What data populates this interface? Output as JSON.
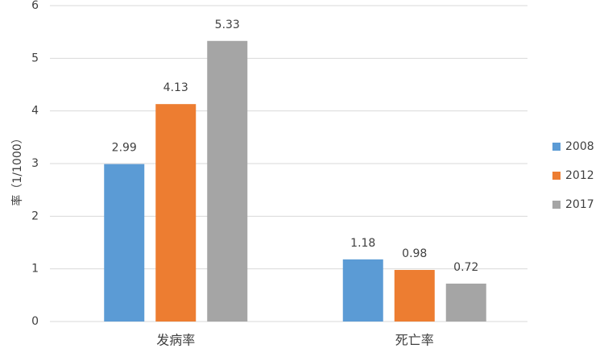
{
  "chart_data": {
    "type": "bar",
    "y_label": "率（1/1000）",
    "categories": [
      "发病率",
      "死亡率"
    ],
    "series": [
      {
        "name": "2008",
        "color": "#5b9bd5",
        "values": [
          2.99,
          1.18
        ]
      },
      {
        "name": "2012",
        "color": "#ed7d31",
        "values": [
          4.13,
          0.98
        ]
      },
      {
        "name": "2017",
        "color": "#a5a5a5",
        "values": [
          5.33,
          0.72
        ]
      }
    ],
    "ylim": [
      0,
      6
    ],
    "yticks": [
      0,
      1,
      2,
      3,
      4,
      5,
      6
    ],
    "grid": true,
    "legend": "right"
  }
}
